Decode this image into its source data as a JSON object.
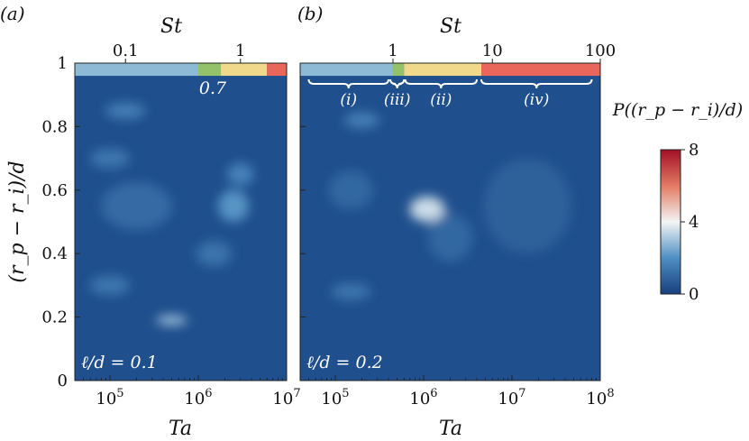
{
  "colors": {
    "background": "#1f4f8d",
    "regime_i": "#8fbad6",
    "regime_iii": "#93c26a",
    "regime_ii": "#f0d98a",
    "regime_iv": "#e8675a",
    "cmap_low": "#17407f",
    "cmap_mid": "#f7f7f7",
    "cmap_high": "#a30f26"
  },
  "chart_data": [
    {
      "type": "heatmap",
      "panel_tag": "(a)",
      "annotation": "ℓ/d = 0.1",
      "xlabel": "Ta",
      "ylabel": "(r_p − r_i)/d",
      "top_axis_label": "St",
      "x_scale": "log",
      "xlim": [
        40000,
        10000000
      ],
      "ylim": [
        0,
        1
      ],
      "x_ticks": [
        {
          "value": 100000,
          "label": "10^5"
        },
        {
          "value": 1000000,
          "label": "10^6"
        },
        {
          "value": 10000000,
          "label": "10^7"
        }
      ],
      "y_ticks": [
        {
          "value": 0,
          "label": "0"
        },
        {
          "value": 0.2,
          "label": "0.2"
        },
        {
          "value": 0.4,
          "label": "0.4"
        },
        {
          "value": 0.6,
          "label": "0.6"
        },
        {
          "value": 0.8,
          "label": "0.8"
        },
        {
          "value": 1,
          "label": "1"
        }
      ],
      "top_ticks": [
        {
          "ta": 150000,
          "label": "0.1"
        },
        {
          "ta": 3000000,
          "label": "1"
        }
      ],
      "top_annotation": {
        "ta": 1800000,
        "label": "0.7"
      },
      "regime_bar": [
        {
          "from": 40000,
          "to": 1000000,
          "color": "#8fbad6"
        },
        {
          "from": 1000000,
          "to": 1800000,
          "color": "#93c26a"
        },
        {
          "from": 1800000,
          "to": 6000000,
          "color": "#f0d98a"
        },
        {
          "from": 6000000,
          "to": 10000000,
          "color": "#e8675a"
        }
      ],
      "blobs": [
        {
          "ta": 150000,
          "y": 0.85,
          "w_dec": 0.45,
          "h": 0.05,
          "p": 1.6
        },
        {
          "ta": 100000,
          "y": 0.7,
          "w_dec": 0.45,
          "h": 0.06,
          "p": 1.4
        },
        {
          "ta": 200000,
          "y": 0.55,
          "w_dec": 0.8,
          "h": 0.15,
          "p": 1.1
        },
        {
          "ta": 2500000,
          "y": 0.55,
          "w_dec": 0.35,
          "h": 0.1,
          "p": 2.1
        },
        {
          "ta": 3000000,
          "y": 0.65,
          "w_dec": 0.3,
          "h": 0.07,
          "p": 1.7
        },
        {
          "ta": 500000,
          "y": 0.19,
          "w_dec": 0.35,
          "h": 0.03,
          "p": 3.0
        },
        {
          "ta": 100000,
          "y": 0.3,
          "w_dec": 0.45,
          "h": 0.06,
          "p": 1.4
        },
        {
          "ta": 1500000,
          "y": 0.4,
          "w_dec": 0.4,
          "h": 0.08,
          "p": 1.3
        }
      ]
    },
    {
      "type": "heatmap",
      "panel_tag": "(b)",
      "annotation": "ℓ/d = 0.2",
      "xlabel": "Ta",
      "top_axis_label": "St",
      "x_scale": "log",
      "xlim": [
        40000,
        100000000
      ],
      "ylim": [
        0,
        1
      ],
      "x_ticks": [
        {
          "value": 100000,
          "label": "10^5"
        },
        {
          "value": 1000000,
          "label": "10^6"
        },
        {
          "value": 10000000,
          "label": "10^7"
        },
        {
          "value": 100000000,
          "label": "10^8"
        }
      ],
      "top_ticks": [
        {
          "ta": 450000,
          "label": "1"
        },
        {
          "ta": 6000000,
          "label": "10"
        },
        {
          "ta": 100000000,
          "label": "100"
        }
      ],
      "regime_bar": [
        {
          "from": 40000,
          "to": 450000,
          "color": "#8fbad6"
        },
        {
          "from": 450000,
          "to": 600000,
          "color": "#93c26a"
        },
        {
          "from": 600000,
          "to": 4500000,
          "color": "#f0d98a"
        },
        {
          "from": 4500000,
          "to": 100000000,
          "color": "#e8675a"
        }
      ],
      "regimes": [
        {
          "label": "(i)",
          "from": 50000,
          "to": 400000
        },
        {
          "label": "(iii)",
          "from": 420000,
          "to": 600000
        },
        {
          "label": "(ii)",
          "from": 620000,
          "to": 4000000
        },
        {
          "label": "(iv)",
          "from": 4500000,
          "to": 80000000
        }
      ],
      "blobs": [
        {
          "ta": 1000000,
          "y": 0.545,
          "w_dec": 0.22,
          "h": 0.035,
          "p": 7.8
        },
        {
          "ta": 1100000,
          "y": 0.54,
          "w_dec": 0.4,
          "h": 0.08,
          "p": 3.5
        },
        {
          "ta": 200000,
          "y": 0.82,
          "w_dec": 0.4,
          "h": 0.05,
          "p": 1.6
        },
        {
          "ta": 150000,
          "y": 0.6,
          "w_dec": 0.5,
          "h": 0.12,
          "p": 1.0
        },
        {
          "ta": 150000,
          "y": 0.28,
          "w_dec": 0.45,
          "h": 0.05,
          "p": 1.4
        },
        {
          "ta": 2000000,
          "y": 0.45,
          "w_dec": 0.5,
          "h": 0.15,
          "p": 1.0
        },
        {
          "ta": 15000000,
          "y": 0.55,
          "w_dec": 1.0,
          "h": 0.3,
          "p": 0.8
        }
      ]
    }
  ],
  "colorbar": {
    "label": "P((r_p − r_i)/d)",
    "range": [
      0,
      8
    ],
    "ticks": [
      {
        "value": 0,
        "label": "0"
      },
      {
        "value": 4,
        "label": "4"
      },
      {
        "value": 8,
        "label": "8"
      }
    ]
  }
}
